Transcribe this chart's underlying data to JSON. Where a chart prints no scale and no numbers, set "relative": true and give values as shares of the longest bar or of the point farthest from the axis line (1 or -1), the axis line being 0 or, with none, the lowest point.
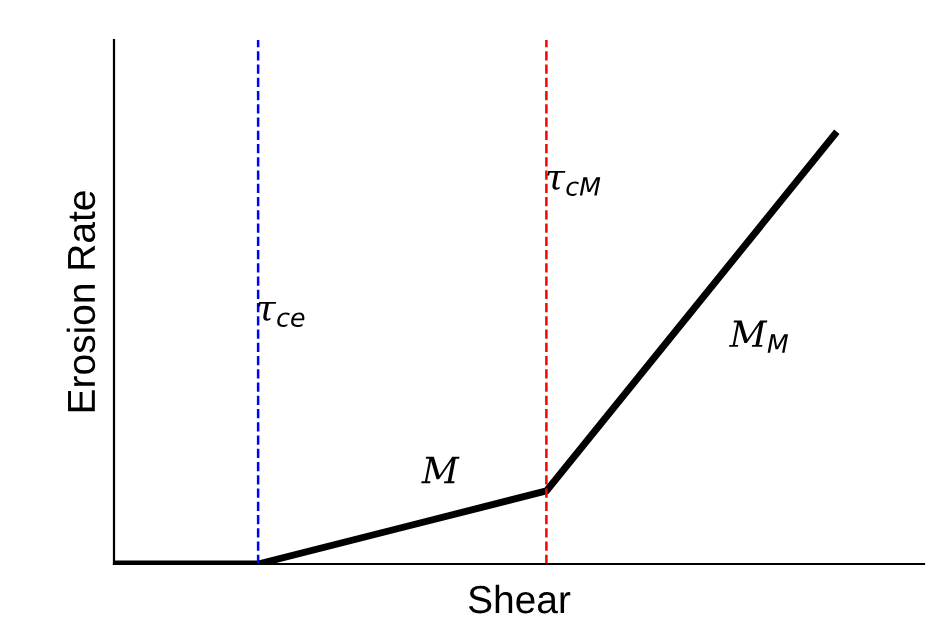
{
  "chart_data": {
    "type": "line",
    "relative": true,
    "xlabel": "Shear",
    "ylabel": "Erosion Rate",
    "categories": [
      null,
      null,
      null,
      null,
      null,
      null
    ],
    "series": [
      {
        "color": "#000000",
        "values": [
          0,
          0,
          0.085,
          0.17,
          0.585,
          1
        ]
      }
    ],
    "annotations": [
      "τ$_{ce}$",
      "τ$_{cM}$",
      "M",
      "M$_{M}$"
    ],
    "legend": false,
    "marker": "none",
    "line_style": "solid"
  }
}
